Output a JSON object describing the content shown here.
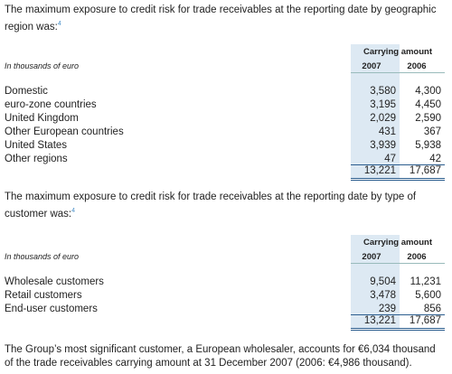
{
  "paragraphs": [
    {
      "text": "The maximum exposure to credit risk for trade receivables at the reporting date by geographic region was:",
      "footnote": "4"
    },
    {
      "text": "The maximum exposure to credit risk for trade receivables at the reporting date by type of customer was:",
      "footnote": "4"
    },
    {
      "text": "The Group’s most significant customer, a European wholesaler, accounts for €6,034 thousand of the trade receivables carrying amount at 31 December 2007 (2006: €4,986 thousand)."
    }
  ],
  "tables": [
    {
      "unit": "In thousands of euro",
      "header": "Carrying amount",
      "columns": [
        "2007",
        "2006"
      ],
      "rows": [
        [
          "Domestic",
          "3,580",
          "4,300"
        ],
        [
          "euro-zone countries",
          "3,195",
          "4,450"
        ],
        [
          "United Kingdom",
          "2,029",
          "2,590"
        ],
        [
          "Other European countries",
          "431",
          "367"
        ],
        [
          "United States",
          "3,939",
          "5,938"
        ],
        [
          "Other regions",
          "47",
          "42"
        ]
      ],
      "total": [
        "13,221",
        "17,687"
      ]
    },
    {
      "unit": "In thousands of euro",
      "header": "Carrying amount",
      "columns": [
        "2007",
        "2006"
      ],
      "rows": [
        [
          "Wholesale customers",
          "9,504",
          "11,231"
        ],
        [
          "Retail customers",
          "3,478",
          "5,600"
        ],
        [
          "End-user customers",
          "239",
          "856"
        ]
      ],
      "total": [
        "13,221",
        "17,687"
      ]
    }
  ]
}
